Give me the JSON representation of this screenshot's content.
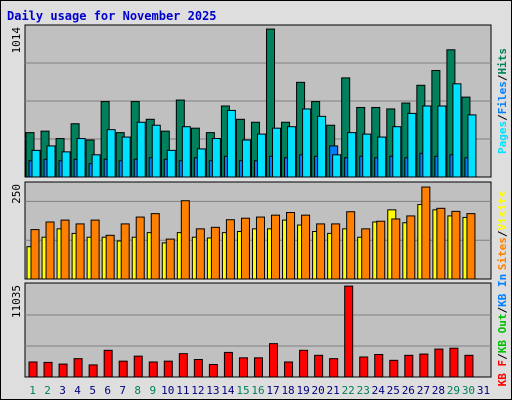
{
  "title": "Daily usage for November 2025",
  "colors": {
    "hits": "#00805c",
    "files": "#0080ff",
    "pages": "#00e0ff",
    "visits": "#ffff00",
    "sites": "#ff8000",
    "kb_in": "#0080ff",
    "kb_out": "#00c000",
    "kb_f": "#ff0000",
    "panel_bg": "#c0c0c0",
    "grid": "#808080",
    "weekend": "#00805c",
    "weekday": "#000080"
  },
  "chart_data": [
    {
      "type": "bar",
      "name": "hits-files-pages",
      "max_label": "1014",
      "ylim": [
        0,
        1014
      ],
      "legend": [
        "Pages",
        "Files",
        "Hits"
      ],
      "categories": [
        1,
        2,
        3,
        4,
        5,
        6,
        7,
        8,
        9,
        10,
        11,
        12,
        13,
        14,
        15,
        16,
        17,
        18,
        19,
        20,
        21,
        22,
        23,
        24,
        25,
        26,
        27,
        28,
        29,
        30,
        31
      ],
      "series": [
        {
          "name": "Hits",
          "values": [
            300,
            310,
            260,
            360,
            250,
            510,
            300,
            510,
            390,
            310,
            520,
            330,
            300,
            480,
            390,
            370,
            1000,
            370,
            640,
            510,
            350,
            670,
            470,
            470,
            460,
            500,
            620,
            720,
            860,
            540,
            0
          ]
        },
        {
          "name": "Files",
          "values": [
            110,
            120,
            110,
            120,
            90,
            120,
            110,
            120,
            130,
            120,
            110,
            130,
            110,
            140,
            110,
            110,
            140,
            130,
            150,
            140,
            210,
            130,
            140,
            130,
            140,
            130,
            160,
            140,
            150,
            130,
            0
          ]
        },
        {
          "name": "Pages",
          "values": [
            180,
            210,
            170,
            260,
            150,
            320,
            270,
            370,
            350,
            180,
            340,
            190,
            260,
            450,
            250,
            290,
            330,
            340,
            460,
            410,
            150,
            300,
            290,
            270,
            340,
            430,
            480,
            480,
            630,
            420,
            0
          ]
        }
      ]
    },
    {
      "type": "bar",
      "name": "visits-sites",
      "max_label": "250",
      "ylim": [
        0,
        250
      ],
      "legend": [
        "Sites",
        "Visits"
      ],
      "categories": [
        1,
        2,
        3,
        4,
        5,
        6,
        7,
        8,
        9,
        10,
        11,
        12,
        13,
        14,
        15,
        16,
        17,
        18,
        19,
        20,
        21,
        22,
        23,
        24,
        25,
        26,
        27,
        28,
        29,
        30,
        31
      ],
      "series": [
        {
          "name": "Visits",
          "values": [
            85,
            110,
            132,
            120,
            110,
            110,
            100,
            110,
            122,
            95,
            122,
            110,
            108,
            122,
            125,
            132,
            132,
            155,
            142,
            125,
            120,
            132,
            110,
            150,
            182,
            148,
            196,
            182,
            166,
            162,
            0
          ]
        },
        {
          "name": "Sites",
          "values": [
            130,
            150,
            155,
            145,
            155,
            115,
            145,
            163,
            172,
            105,
            206,
            132,
            136,
            156,
            160,
            163,
            168,
            175,
            168,
            145,
            145,
            177,
            132,
            152,
            158,
            166,
            242,
            186,
            178,
            172,
            0
          ]
        }
      ]
    },
    {
      "type": "bar",
      "name": "kbytes",
      "max_label": "11035",
      "ylim": [
        0,
        11035
      ],
      "legend": [
        "KB F",
        "KB Out",
        "KB In"
      ],
      "categories": [
        1,
        2,
        3,
        4,
        5,
        6,
        7,
        8,
        9,
        10,
        11,
        12,
        13,
        14,
        15,
        16,
        17,
        18,
        19,
        20,
        21,
        22,
        23,
        24,
        25,
        26,
        27,
        28,
        29,
        30,
        31
      ],
      "series": [
        {
          "name": "KB F",
          "values": [
            1800,
            1750,
            1550,
            2200,
            1450,
            3200,
            1900,
            2500,
            1800,
            1900,
            2800,
            2100,
            1500,
            2950,
            2300,
            2300,
            4000,
            1800,
            3200,
            2600,
            2200,
            10900,
            2400,
            2700,
            2000,
            2600,
            2750,
            3350,
            3450,
            2600,
            0
          ]
        }
      ]
    }
  ],
  "days": [
    {
      "label": "1",
      "weekend": true
    },
    {
      "label": "2",
      "weekend": true
    },
    {
      "label": "3",
      "weekend": false
    },
    {
      "label": "4",
      "weekend": false
    },
    {
      "label": "5",
      "weekend": false
    },
    {
      "label": "6",
      "weekend": false
    },
    {
      "label": "7",
      "weekend": false
    },
    {
      "label": "8",
      "weekend": true
    },
    {
      "label": "9",
      "weekend": true
    },
    {
      "label": "10",
      "weekend": false
    },
    {
      "label": "11",
      "weekend": false
    },
    {
      "label": "12",
      "weekend": false
    },
    {
      "label": "13",
      "weekend": false
    },
    {
      "label": "14",
      "weekend": false
    },
    {
      "label": "15",
      "weekend": true
    },
    {
      "label": "16",
      "weekend": true
    },
    {
      "label": "17",
      "weekend": false
    },
    {
      "label": "18",
      "weekend": false
    },
    {
      "label": "19",
      "weekend": false
    },
    {
      "label": "20",
      "weekend": false
    },
    {
      "label": "21",
      "weekend": false
    },
    {
      "label": "22",
      "weekend": true
    },
    {
      "label": "23",
      "weekend": true
    },
    {
      "label": "24",
      "weekend": false
    },
    {
      "label": "25",
      "weekend": false
    },
    {
      "label": "26",
      "weekend": false
    },
    {
      "label": "27",
      "weekend": false
    },
    {
      "label": "28",
      "weekend": false
    },
    {
      "label": "29",
      "weekend": true
    },
    {
      "label": "30",
      "weekend": true
    },
    {
      "label": "31",
      "weekend": false
    }
  ]
}
